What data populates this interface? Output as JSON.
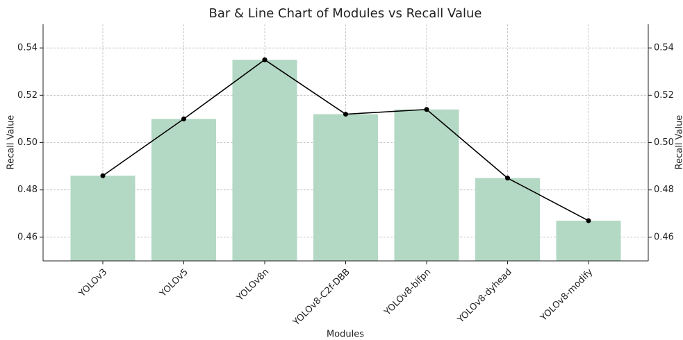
{
  "chart_data": {
    "type": "bar-line",
    "title": "Bar & Line Chart of Modules vs Recall Value",
    "xlabel": "Modules",
    "ylabel": "Recall Value",
    "y2label": "Recall Value",
    "categories": [
      "YOLOv3",
      "YOLOv5",
      "YOLOv8n",
      "YOLOv8-C2f-DBB",
      "YOLOv8-bifpn",
      "YOLOv8-dyhead",
      "YOLOv8-modify"
    ],
    "values": [
      0.486,
      0.51,
      0.535,
      0.512,
      0.514,
      0.485,
      0.467
    ],
    "bar_color": "#b3d8c4",
    "line_color": "#000000",
    "ylim": [
      0.45,
      0.55
    ],
    "yticks": [
      0.46,
      0.48,
      {
        "value": 0.5,
        "label": "0.50"
      },
      0.52,
      0.54
    ],
    "y2lim": [
      0.45,
      0.55
    ],
    "y2ticks": [
      0.46,
      0.48,
      {
        "value": 0.5,
        "label": "0.50"
      },
      0.52,
      0.54
    ],
    "grid": true
  }
}
